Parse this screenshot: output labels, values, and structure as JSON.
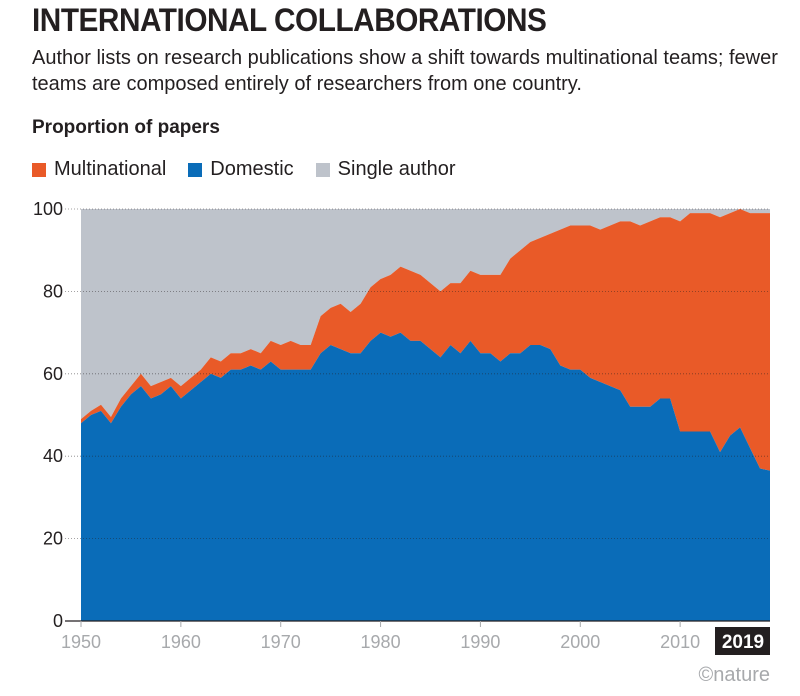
{
  "header": {
    "title": "INTERNATIONAL COLLABORATIONS",
    "subtitle": "Author lists on research publications show a shift towards multinational teams; fewer teams are composed entirely of researchers from one country."
  },
  "credit": "©nature",
  "colors": {
    "multinational": "#e95a28",
    "domestic": "#0a6cb8",
    "single": "#bec3cb",
    "grid": "#231f20",
    "axis_text": "#a7a9ac",
    "highlight_bg": "#231f20"
  },
  "chart_data": {
    "type": "area",
    "stacked": true,
    "title": "INTERNATIONAL COLLABORATIONS",
    "ylabel": "Proportion of papers",
    "xlim": [
      1950,
      2019
    ],
    "ylim": [
      0,
      100
    ],
    "yticks": [
      0,
      20,
      40,
      60,
      80,
      100
    ],
    "xticks": [
      1950,
      1960,
      1970,
      1980,
      1990,
      2000,
      2010
    ],
    "highlight_tick": "2019",
    "legend_position": "top-left",
    "grid": "horizontal-dotted",
    "x": [
      1950,
      1951,
      1952,
      1953,
      1954,
      1955,
      1956,
      1957,
      1958,
      1959,
      1960,
      1961,
      1962,
      1963,
      1964,
      1965,
      1966,
      1967,
      1968,
      1969,
      1970,
      1971,
      1972,
      1973,
      1974,
      1975,
      1976,
      1977,
      1978,
      1979,
      1980,
      1981,
      1982,
      1983,
      1984,
      1985,
      1986,
      1987,
      1988,
      1989,
      1990,
      1991,
      1992,
      1993,
      1994,
      1995,
      1996,
      1997,
      1998,
      1999,
      2000,
      2001,
      2002,
      2003,
      2004,
      2005,
      2006,
      2007,
      2008,
      2009,
      2010,
      2011,
      2012,
      2013,
      2014,
      2015,
      2016,
      2017,
      2018,
      2019
    ],
    "series": [
      {
        "name": "Domestic",
        "values": [
          48,
          50,
          51,
          48,
          52,
          55,
          57,
          54,
          55,
          57,
          54,
          56,
          58,
          60,
          59,
          61,
          61,
          62,
          61,
          63,
          61,
          61,
          61,
          61,
          65,
          67,
          66,
          65,
          65,
          68,
          70,
          69,
          70,
          68,
          68,
          66,
          64,
          67,
          65,
          68,
          65,
          65,
          63,
          65,
          65,
          67,
          67,
          66,
          62,
          61,
          61,
          59,
          58,
          57,
          56,
          52,
          52,
          52,
          54,
          54,
          46,
          46,
          46,
          46,
          41,
          45,
          47,
          42,
          37,
          36.5
        ]
      },
      {
        "name": "Multinational",
        "values": [
          1,
          1,
          1.5,
          1.5,
          2,
          2,
          3,
          3,
          3,
          2,
          3,
          3,
          3,
          4,
          4,
          4,
          4,
          4,
          4,
          5,
          6,
          7,
          6,
          6,
          9,
          9,
          11,
          10,
          12,
          13,
          13,
          15,
          16,
          17,
          16,
          16,
          16,
          15,
          17,
          17,
          19,
          19,
          21,
          23,
          25,
          25,
          26,
          28,
          33,
          35,
          35,
          37,
          37,
          39,
          41,
          45,
          44,
          45,
          44,
          44,
          51,
          53,
          53,
          53,
          57,
          54,
          53,
          57,
          62,
          62.5
        ]
      },
      {
        "name": "Single author",
        "values": [
          51,
          49,
          47.5,
          50.5,
          46,
          43,
          40,
          43,
          42,
          41,
          43,
          41,
          39,
          36,
          37,
          35,
          35,
          34,
          35,
          32,
          33,
          32,
          33,
          33,
          26,
          24,
          23,
          25,
          23,
          19,
          17,
          16,
          14,
          15,
          16,
          18,
          20,
          18,
          18,
          15,
          16,
          16,
          16,
          12,
          10,
          8,
          7,
          6,
          5,
          4,
          4,
          4,
          5,
          4,
          3,
          3,
          4,
          3,
          2,
          2,
          3,
          1,
          1,
          1,
          2,
          1,
          0,
          1,
          1,
          1
        ]
      }
    ]
  }
}
